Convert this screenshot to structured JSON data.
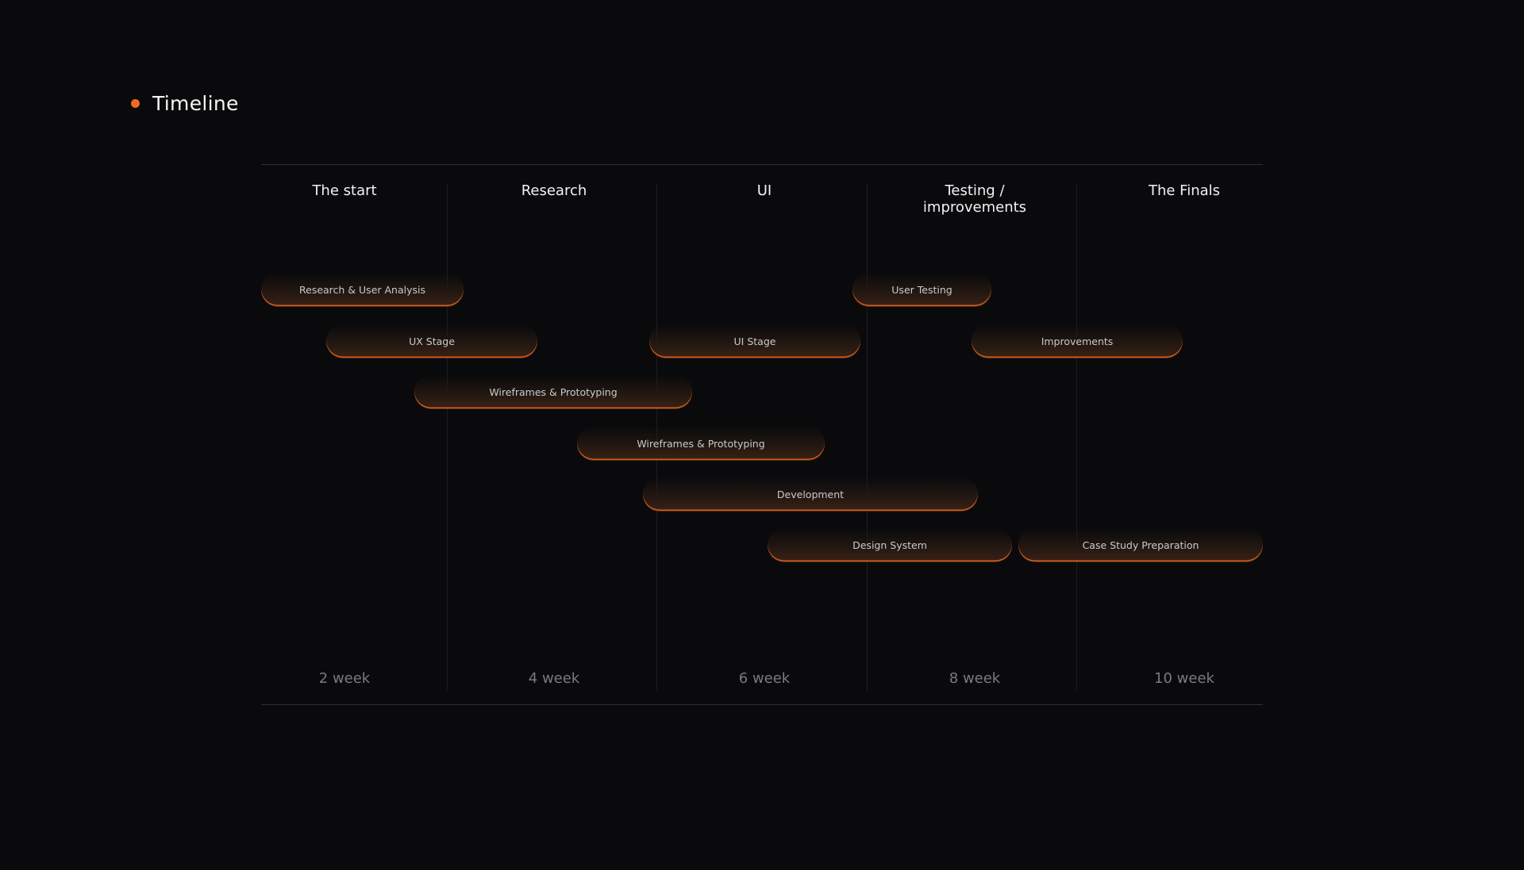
{
  "header": {
    "title": "Timeline"
  },
  "phases": [
    {
      "title": "The start",
      "week": "2 week"
    },
    {
      "title": "Research",
      "week": "4 week"
    },
    {
      "title": "UI",
      "week": "6 week"
    },
    {
      "title": "Testing /\nimprovements",
      "week": "8 week"
    },
    {
      "title": "The Finals",
      "week": "10 week"
    }
  ],
  "tasks": [
    {
      "label": "Research & User Analysis"
    },
    {
      "label": "User Testing"
    },
    {
      "label": "UX Stage"
    },
    {
      "label": "UI Stage"
    },
    {
      "label": "Improvements"
    },
    {
      "label": "Wireframes & Prototyping"
    },
    {
      "label": "Wireframes & Prototyping"
    },
    {
      "label": "Development"
    },
    {
      "label": "Design System"
    },
    {
      "label": "Case Study Preparation"
    }
  ],
  "colors": {
    "accent": "#f26a21",
    "background": "#0a0a0c"
  }
}
